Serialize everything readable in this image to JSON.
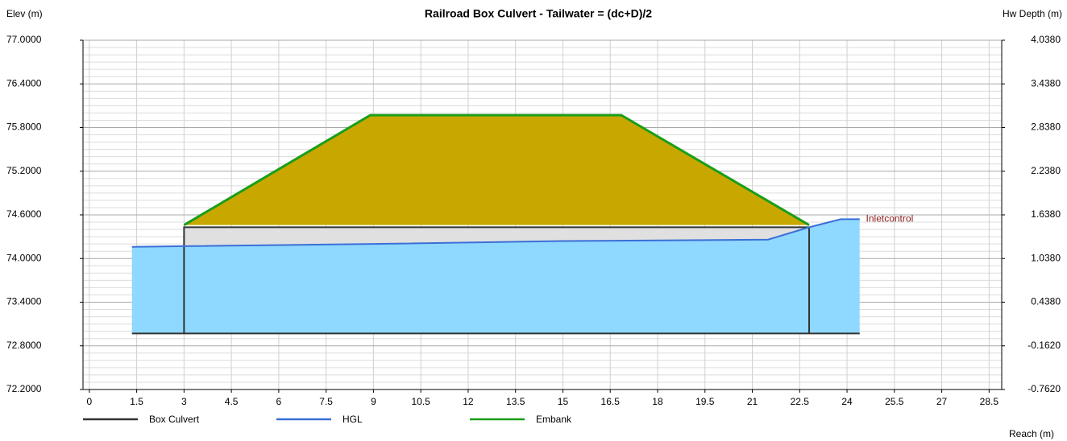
{
  "chart_data": {
    "type": "line",
    "title": "Railroad Box Culvert - Tailwater = (dc+D)/2",
    "y_label": "Elev (m)",
    "y2_label": "Hw Depth (m)",
    "x_label": "Reach (m)",
    "xlim": [
      -0.2,
      28.9
    ],
    "xticks": [
      0,
      1.5,
      3,
      4.5,
      6,
      7.5,
      9,
      10.5,
      12,
      13.5,
      15,
      16.5,
      18,
      19.5,
      21,
      22.5,
      24,
      25.5,
      27,
      28.5
    ],
    "ylim": [
      72.2,
      77.0
    ],
    "yticks": [
      {
        "value": 72.2,
        "label": "72.2000"
      },
      {
        "value": 72.8,
        "label": "72.8000"
      },
      {
        "value": 73.4,
        "label": "73.4000"
      },
      {
        "value": 74.0,
        "label": "74.0000"
      },
      {
        "value": 74.6,
        "label": "74.6000"
      },
      {
        "value": 75.2,
        "label": "75.2000"
      },
      {
        "value": 75.8,
        "label": "75.8000"
      },
      {
        "value": 76.4,
        "label": "76.4000"
      },
      {
        "value": 77.0,
        "label": "77.0000"
      }
    ],
    "y2lim": [
      -0.762,
      4.038
    ],
    "y2ticks": [
      {
        "value": -0.762,
        "label": "-0.7620"
      },
      {
        "value": -0.162,
        "label": "-0.1620"
      },
      {
        "value": 0.438,
        "label": "0.4380"
      },
      {
        "value": 1.038,
        "label": "1.0380"
      },
      {
        "value": 1.638,
        "label": "1.6380"
      },
      {
        "value": 2.238,
        "label": "2.2380"
      },
      {
        "value": 2.838,
        "label": "2.8380"
      },
      {
        "value": 3.438,
        "label": "3.4380"
      },
      {
        "value": 4.038,
        "label": "4.0380"
      }
    ],
    "grid": true,
    "series": [
      {
        "name": "Box Culvert",
        "color": "#333333",
        "fill": "#e0e0e0",
        "x": [
          1.35,
          24.4,
          null,
          3,
          3,
          22.8,
          22.8
        ],
        "values": [
          72.97,
          72.97,
          null,
          72.97,
          74.43,
          74.43,
          72.97
        ]
      },
      {
        "name": "HGL",
        "color": "#3a6fd8",
        "fill": "#8fd8ff",
        "x": [
          1.35,
          3,
          9,
          15,
          21.5,
          22.8,
          23.8,
          24.4
        ],
        "values": [
          74.16,
          74.17,
          74.2,
          74.24,
          74.26,
          74.43,
          74.54,
          74.54
        ]
      },
      {
        "name": "Embank",
        "color": "#1a9e1a",
        "fill": "#c8a800",
        "x": [
          3,
          8.9,
          16.85,
          22.8
        ],
        "values": [
          74.46,
          75.97,
          75.97,
          74.46
        ]
      }
    ],
    "annotation": {
      "text": "Inletcontrol",
      "x": 24.6,
      "y": 74.54,
      "color": "#8b1a1a"
    }
  }
}
